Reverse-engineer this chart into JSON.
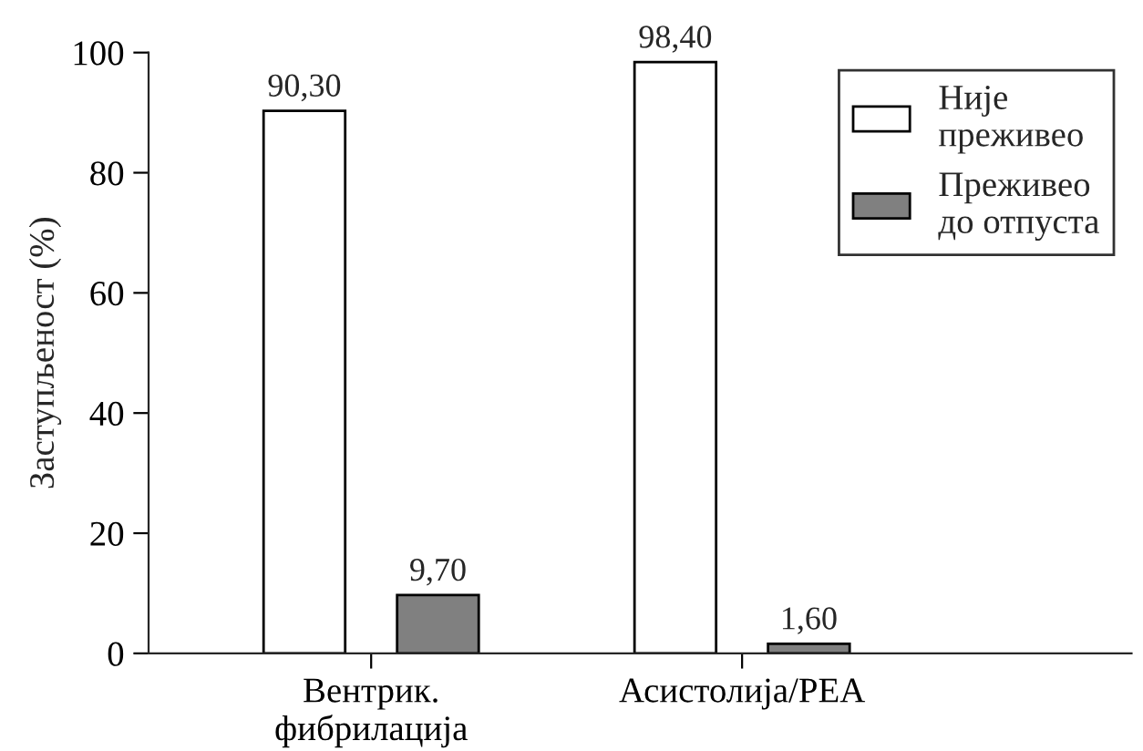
{
  "chart_data": {
    "type": "bar",
    "ylabel": "Заступљеност (%)",
    "categories": [
      "Вентрик.\nфибрилација",
      "Асистолија/PEA"
    ],
    "series": [
      {
        "name": "Није\nпреживео",
        "color": "#ffffff",
        "values": [
          90.3,
          98.4
        ],
        "value_labels": [
          "90,30",
          "98,40"
        ]
      },
      {
        "name": "Преживео\nдо отпуста",
        "color": "#808080",
        "values": [
          9.7,
          1.6
        ],
        "value_labels": [
          "9,70",
          "1,60"
        ]
      }
    ],
    "ylim": [
      0,
      100
    ],
    "yticks": [
      0,
      20,
      40,
      60,
      80,
      100
    ],
    "grid": false,
    "legend": "top right"
  }
}
